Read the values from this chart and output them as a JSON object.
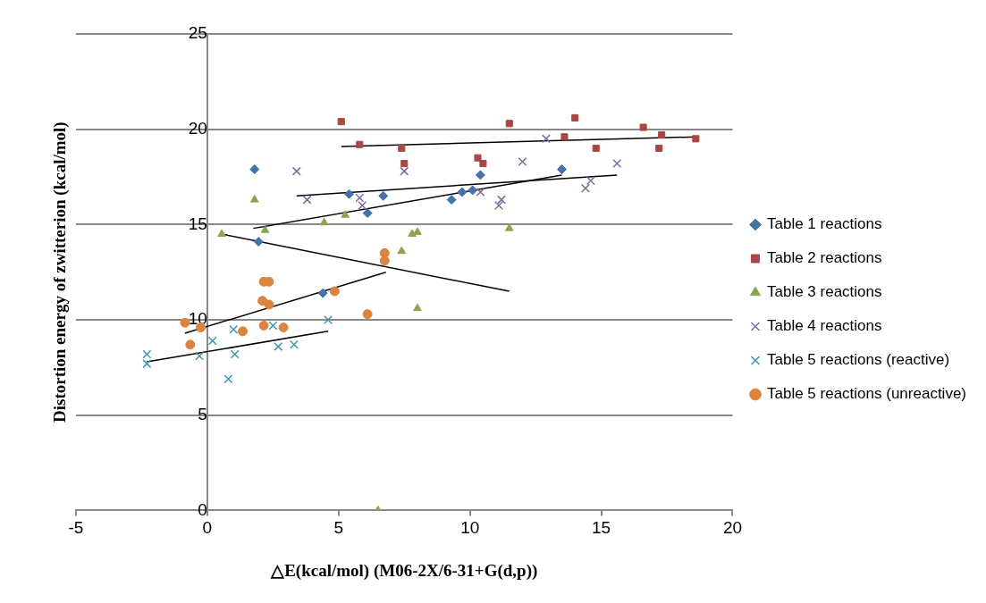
{
  "chart_data": {
    "type": "scatter",
    "xlabel": "△E(kcal/mol) (M06-2X/6-31+G(d,p))",
    "ylabel": "Distortion energy of zwitterion (kcal/mol)",
    "xlim": [
      -5,
      20
    ],
    "xticks": [
      -5,
      0,
      5,
      10,
      15,
      20
    ],
    "ylim": [
      0,
      25
    ],
    "yticks": [
      0,
      5,
      10,
      15,
      20,
      25
    ],
    "grid": "y",
    "legend": "right",
    "series": [
      {
        "name": "Table 1 reactions",
        "color": "#4572a7",
        "marker": "diamond",
        "x": [
          1.8,
          1.95,
          5.4,
          6.1,
          6.7,
          4.4,
          9.3,
          9.7,
          10.1,
          10.4,
          13.5
        ],
        "values": [
          17.9,
          14.1,
          16.6,
          15.6,
          16.5,
          11.4,
          16.3,
          16.7,
          16.8,
          17.6,
          17.9
        ]
      },
      {
        "name": "Table 2 reactions",
        "color": "#aa4643",
        "marker": "square",
        "x": [
          5.1,
          5.8,
          7.4,
          7.5,
          11.5,
          14.0,
          13.6,
          14.8,
          10.3,
          10.5,
          16.6,
          17.3,
          17.2,
          18.6
        ],
        "values": [
          20.4,
          19.2,
          19.0,
          18.2,
          20.3,
          20.6,
          19.6,
          19.0,
          18.5,
          18.2,
          20.1,
          19.7,
          19.0,
          19.5
        ]
      },
      {
        "name": "Table 3 reactions",
        "color": "#89a54e",
        "marker": "triangle",
        "x": [
          0.55,
          1.8,
          2.2,
          4.45,
          5.25,
          7.4,
          7.8,
          8.0,
          11.5,
          8.0,
          6.5
        ],
        "values": [
          14.5,
          16.3,
          14.7,
          15.1,
          15.5,
          13.6,
          14.5,
          14.6,
          14.8,
          10.6,
          0.0
        ]
      },
      {
        "name": "Table 4 reactions",
        "color": "#80699b",
        "marker": "cross",
        "x": [
          3.4,
          3.8,
          5.8,
          5.9,
          7.5,
          10.4,
          11.2,
          11.1,
          12.9,
          12.0,
          14.4,
          14.6,
          15.6
        ],
        "values": [
          17.8,
          16.3,
          16.4,
          16.0,
          17.8,
          16.7,
          16.3,
          16.0,
          19.5,
          18.3,
          16.9,
          17.3,
          18.2
        ]
      },
      {
        "name": "Table 5 reactions (reactive)",
        "color": "#3d96ae",
        "marker": "cross",
        "x": [
          -2.3,
          -2.3,
          -0.3,
          0.2,
          1.0,
          1.05,
          0.8,
          2.5,
          2.7,
          3.3,
          4.6
        ],
        "values": [
          8.2,
          7.7,
          8.1,
          8.9,
          9.5,
          8.2,
          6.9,
          9.7,
          8.6,
          8.7,
          10.0
        ]
      },
      {
        "name": "Table 5 reactions (unreactive)",
        "color": "#db843d",
        "marker": "circle",
        "x": [
          -0.85,
          -0.25,
          -0.65,
          1.35,
          2.15,
          2.9,
          2.1,
          2.35,
          2.15,
          2.35,
          4.85,
          6.1,
          6.75,
          6.75
        ],
        "values": [
          9.85,
          9.6,
          8.7,
          9.4,
          9.7,
          9.6,
          11.0,
          10.8,
          12.0,
          12.0,
          11.5,
          10.3,
          13.5,
          13.1
        ]
      },
      {
        "type": "line",
        "color": "#000000",
        "marker": "none",
        "x": [
          1.75,
          13.5
        ],
        "values": [
          14.8,
          17.6
        ]
      },
      {
        "type": "line",
        "color": "#000000",
        "marker": "none",
        "x": [
          5.1,
          18.6
        ],
        "values": [
          19.1,
          19.6
        ]
      },
      {
        "type": "line",
        "color": "#000000",
        "marker": "none",
        "x": [
          0.55,
          11.5
        ],
        "values": [
          14.5,
          11.5
        ]
      },
      {
        "type": "line",
        "color": "#000000",
        "marker": "none",
        "x": [
          3.4,
          15.6
        ],
        "values": [
          16.5,
          17.6
        ]
      },
      {
        "type": "line",
        "color": "#000000",
        "marker": "none",
        "x": [
          -2.3,
          4.6
        ],
        "values": [
          7.8,
          9.4
        ]
      },
      {
        "type": "line",
        "color": "#000000",
        "marker": "none",
        "x": [
          -0.85,
          6.8
        ],
        "values": [
          9.3,
          12.5
        ]
      }
    ]
  }
}
